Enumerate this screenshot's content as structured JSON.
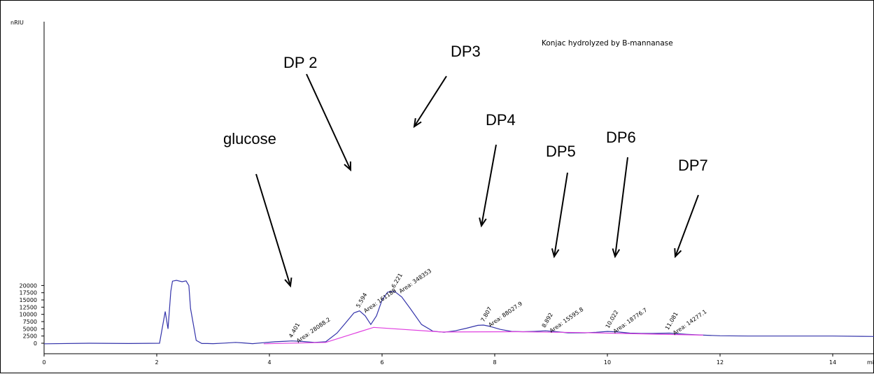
{
  "chart_data": {
    "type": "line",
    "title": "Konjac hydrolyzed by B-mannanase",
    "ylabel": "nRIU",
    "xlabel": "mi",
    "xlim": [
      0,
      15
    ],
    "ylim": [
      -1000,
      22500
    ],
    "x_ticks": [
      0,
      2,
      4,
      6,
      8,
      10,
      12,
      14
    ],
    "x_tick_labels": [
      "0",
      "2",
      "4",
      "6",
      "8",
      "10",
      "12",
      "14"
    ],
    "y_ticks": [
      0,
      2500,
      5000,
      7500,
      10000,
      12500,
      15000,
      17500,
      20000
    ],
    "y_tick_labels": [
      "0",
      "2500",
      "5000",
      "7500",
      "10000",
      "12500",
      "15000",
      "17500",
      "20000"
    ],
    "grid": false,
    "series": [
      {
        "color": "#3333aa",
        "x": [
          0,
          0.8,
          1.5,
          2.05,
          2.15,
          2.2,
          2.25,
          2.28,
          2.35,
          2.45,
          2.52,
          2.57,
          2.6,
          2.7,
          2.8,
          2.9,
          3.0,
          3.2,
          3.4,
          3.55,
          3.7,
          3.9,
          4.1,
          4.3,
          4.4,
          4.6,
          4.8,
          5.0,
          5.2,
          5.35,
          5.5,
          5.6,
          5.7,
          5.8,
          5.9,
          6.0,
          6.1,
          6.22,
          6.35,
          6.5,
          6.7,
          6.9,
          7.1,
          7.3,
          7.5,
          7.7,
          7.8,
          7.9,
          8.1,
          8.3,
          8.5,
          8.7,
          8.9,
          9.1,
          9.3,
          9.6,
          9.8,
          10.0,
          10.2,
          10.4,
          10.6,
          10.8,
          11.1,
          11.4,
          11.7,
          12.0,
          12.5,
          13.0,
          13.5,
          14.0,
          14.5,
          15.0
        ],
        "y": [
          -200,
          0,
          -100,
          0,
          11000,
          5000,
          18000,
          21500,
          21800,
          21300,
          21600,
          20000,
          12000,
          1000,
          -100,
          -100,
          -150,
          50,
          300,
          100,
          -150,
          200,
          500,
          700,
          800,
          600,
          300,
          500,
          3500,
          7000,
          10500,
          11200,
          9500,
          6500,
          9500,
          15000,
          17700,
          18000,
          16000,
          12000,
          6500,
          4200,
          3800,
          4300,
          5200,
          6200,
          6300,
          5900,
          4800,
          4100,
          4000,
          4100,
          4300,
          4000,
          3600,
          3600,
          3800,
          4100,
          3900,
          3500,
          3400,
          3400,
          3500,
          3100,
          2800,
          2600,
          2500,
          2500,
          2500,
          2500,
          2400,
          2300
        ]
      },
      {
        "color": "#e040e0",
        "x": [
          3.9,
          5.0,
          5.85,
          7.05,
          8.4,
          9.5,
          11.7
        ],
        "y": [
          -200,
          300,
          5500,
          3900,
          4000,
          3700,
          2800
        ]
      }
    ],
    "peak_labels": [
      {
        "x": 4.4,
        "y": 800,
        "time": "4.401",
        "area": "Area: 28088.2"
      },
      {
        "x": 5.594,
        "y": 11200,
        "time": "5.594",
        "area": "Area: 161188"
      },
      {
        "x": 6.221,
        "y": 18000,
        "time": "6.221",
        "area": "Area: 348353"
      },
      {
        "x": 7.807,
        "y": 6300,
        "time": "7.807",
        "area": "Area: 88027.9"
      },
      {
        "x": 8.892,
        "y": 4300,
        "time": "8.892",
        "area": "Area: 15595.8"
      },
      {
        "x": 10.022,
        "y": 4100,
        "time": "10.022",
        "area": "Area: 18776.7"
      },
      {
        "x": 11.081,
        "y": 3500,
        "time": "11.081",
        "area": "Area: 14277.1"
      }
    ],
    "annotations": [
      {
        "text": "glucose"
      },
      {
        "text": "DP 2"
      },
      {
        "text": "DP3"
      },
      {
        "text": "DP4"
      },
      {
        "text": "DP5"
      },
      {
        "text": "DP6"
      },
      {
        "text": "DP7"
      }
    ]
  }
}
